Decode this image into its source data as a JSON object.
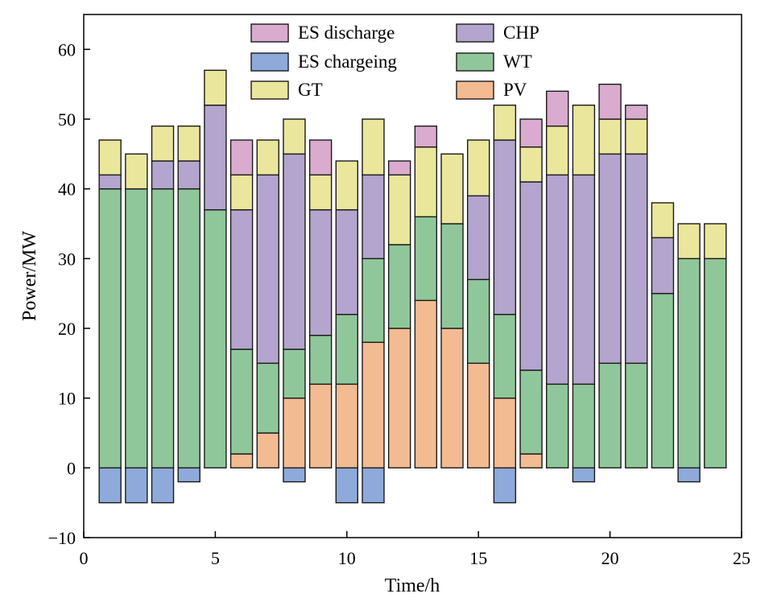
{
  "chart_data": {
    "type": "bar",
    "stacked": true,
    "xlabel": "Time/h",
    "ylabel": "Power/MW",
    "xlim": [
      0,
      25
    ],
    "ylim": [
      -10,
      65
    ],
    "xticks": [
      0,
      5,
      10,
      15,
      20,
      25
    ],
    "yticks": [
      -10,
      0,
      10,
      20,
      30,
      40,
      50,
      60
    ],
    "legend_position": "top",
    "x": [
      1,
      2,
      3,
      4,
      5,
      6,
      7,
      8,
      9,
      10,
      11,
      12,
      13,
      14,
      15,
      16,
      17,
      18,
      19,
      20,
      21,
      22,
      23,
      24
    ],
    "series": [
      {
        "name": "ES chargeing",
        "key": "es_charge",
        "color": "#8eaadb",
        "values": [
          -5,
          -5,
          -5,
          -2,
          0,
          0,
          0,
          -2,
          0,
          -5,
          -5,
          0,
          0,
          0,
          0,
          -5,
          0,
          0,
          -2,
          0,
          0,
          0,
          -2,
          0
        ]
      },
      {
        "name": "PV",
        "key": "pv",
        "color": "#f3bb91",
        "values": [
          0,
          0,
          0,
          0,
          0,
          2,
          5,
          10,
          12,
          12,
          18,
          20,
          24,
          20,
          15,
          10,
          2,
          0,
          0,
          0,
          0,
          0,
          0,
          0
        ]
      },
      {
        "name": "WT",
        "key": "wt",
        "color": "#8fc79a",
        "values": [
          40,
          40,
          40,
          40,
          37,
          15,
          10,
          7,
          7,
          10,
          12,
          12,
          12,
          15,
          12,
          12,
          12,
          12,
          12,
          15,
          15,
          25,
          30,
          30
        ]
      },
      {
        "name": "CHP",
        "key": "chp",
        "color": "#b3a5cd",
        "values": [
          2,
          0,
          4,
          4,
          15,
          20,
          27,
          28,
          18,
          15,
          12,
          0,
          0,
          0,
          12,
          25,
          27,
          30,
          30,
          30,
          30,
          8,
          0,
          0
        ]
      },
      {
        "name": "GT",
        "key": "gt",
        "color": "#eae69c",
        "values": [
          5,
          5,
          5,
          5,
          5,
          5,
          5,
          5,
          5,
          7,
          8,
          10,
          10,
          10,
          8,
          5,
          5,
          7,
          10,
          5,
          5,
          5,
          5,
          5
        ]
      },
      {
        "name": "ES discharge",
        "key": "es_discharge",
        "color": "#d9abce",
        "values": [
          0,
          0,
          0,
          0,
          0,
          5,
          0,
          0,
          5,
          0,
          0,
          2,
          3,
          0,
          0,
          0,
          4,
          5,
          0,
          5,
          2,
          0,
          0,
          0
        ]
      }
    ],
    "legend": [
      {
        "name": "ES discharge",
        "color": "#d9abce"
      },
      {
        "name": "CHP",
        "color": "#b3a5cd"
      },
      {
        "name": "ES chargeing",
        "color": "#8eaadb"
      },
      {
        "name": "WT",
        "color": "#8fc79a"
      },
      {
        "name": "GT",
        "color": "#eae69c"
      },
      {
        "name": "PV",
        "color": "#f3bb91"
      }
    ]
  }
}
